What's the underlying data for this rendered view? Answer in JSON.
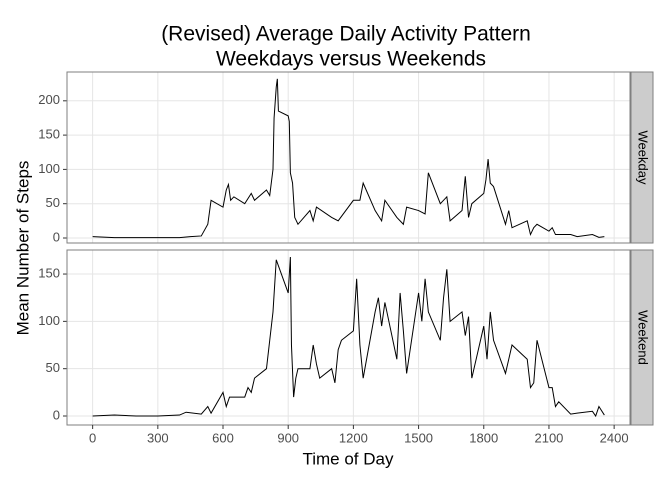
{
  "chart_data": [
    {
      "type": "line",
      "title": [
        "(Revised) Average Daily Activity Pattern",
        "Weekdays versus Weekends"
      ],
      "ylabel": "Mean Number of Steps",
      "facet": "Weekday",
      "x": [
        0,
        100,
        200,
        300,
        400,
        450,
        500,
        530,
        545,
        600,
        615,
        625,
        635,
        650,
        700,
        730,
        745,
        800,
        815,
        830,
        835,
        845,
        850,
        855,
        900,
        905,
        910,
        920,
        930,
        945,
        1000,
        1015,
        1030,
        1100,
        1130,
        1200,
        1230,
        1245,
        1300,
        1330,
        1345,
        1400,
        1430,
        1445,
        1500,
        1530,
        1545,
        1600,
        1630,
        1645,
        1700,
        1715,
        1730,
        1745,
        1800,
        1810,
        1820,
        1830,
        1845,
        1900,
        1915,
        1930,
        2000,
        2015,
        2030,
        2045,
        2100,
        2115,
        2130,
        2200,
        2230,
        2300,
        2330,
        2355
      ],
      "series": [
        {
          "name": "Weekday",
          "color": "#000000",
          "values": [
            2,
            0.5,
            0.5,
            0.5,
            0.5,
            2,
            3,
            20,
            55,
            45,
            70,
            78,
            55,
            60,
            50,
            65,
            55,
            70,
            62,
            100,
            175,
            220,
            232,
            185,
            178,
            170,
            95,
            80,
            30,
            20,
            40,
            25,
            45,
            30,
            25,
            55,
            55,
            80,
            40,
            25,
            55,
            30,
            20,
            45,
            40,
            35,
            95,
            50,
            60,
            25,
            40,
            90,
            30,
            50,
            65,
            85,
            115,
            80,
            75,
            20,
            40,
            15,
            25,
            5,
            15,
            20,
            10,
            15,
            5,
            5,
            2,
            5,
            1,
            2
          ]
        }
      ],
      "xlim": [
        -118,
        2473
      ],
      "ylim": [
        -7.3,
        242
      ],
      "yticks": [
        0,
        50,
        100,
        150,
        200
      ],
      "grid": true
    },
    {
      "type": "line",
      "xlabel": "Time of Day",
      "facet": "Weekend",
      "x": [
        0,
        100,
        200,
        300,
        400,
        430,
        500,
        530,
        545,
        600,
        615,
        630,
        700,
        715,
        730,
        745,
        800,
        815,
        830,
        845,
        900,
        910,
        915,
        925,
        935,
        945,
        1000,
        1015,
        1030,
        1045,
        1100,
        1115,
        1130,
        1145,
        1200,
        1215,
        1230,
        1245,
        1300,
        1315,
        1330,
        1345,
        1400,
        1415,
        1430,
        1445,
        1500,
        1515,
        1530,
        1545,
        1600,
        1615,
        1630,
        1645,
        1700,
        1715,
        1730,
        1745,
        1800,
        1815,
        1830,
        1845,
        1900,
        1915,
        1930,
        2000,
        2015,
        2030,
        2045,
        2100,
        2115,
        2130,
        2145,
        2200,
        2230,
        2300,
        2315,
        2330,
        2355
      ],
      "series": [
        {
          "name": "Weekend",
          "color": "#000000",
          "values": [
            0,
            1,
            0,
            0,
            1,
            4,
            2,
            10,
            3,
            25,
            10,
            20,
            20,
            30,
            25,
            40,
            50,
            80,
            110,
            165,
            130,
            168,
            75,
            20,
            40,
            50,
            50,
            75,
            55,
            40,
            50,
            35,
            70,
            80,
            90,
            145,
            75,
            40,
            110,
            125,
            95,
            120,
            60,
            130,
            90,
            45,
            130,
            100,
            145,
            110,
            80,
            125,
            155,
            100,
            110,
            85,
            105,
            40,
            95,
            60,
            110,
            80,
            45,
            60,
            75,
            60,
            30,
            35,
            80,
            30,
            30,
            10,
            15,
            2,
            3,
            5,
            0,
            10,
            1
          ]
        }
      ],
      "xlim": [
        -118,
        2473
      ],
      "ylim": [
        -9.5,
        175.4
      ],
      "yticks": [
        0,
        50,
        100,
        150
      ],
      "xticks": [
        0,
        300,
        600,
        900,
        1200,
        1500,
        1800,
        2100,
        2400
      ],
      "grid": true
    }
  ]
}
